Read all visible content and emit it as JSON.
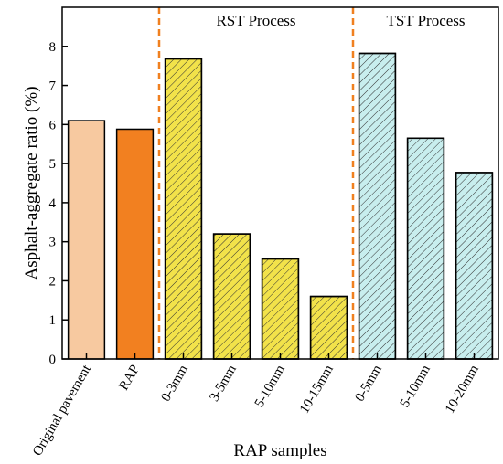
{
  "chart_data": {
    "type": "bar",
    "xlabel": "RAP samples",
    "ylabel": "Asphalt-aggregate ratio (%)",
    "ylim": [
      0,
      9
    ],
    "yticks": [
      0,
      1,
      2,
      3,
      4,
      5,
      6,
      7,
      8
    ],
    "grid": false,
    "categories": [
      "Original pavement",
      "RAP",
      "0-3mm",
      "3-5mm",
      "5-10mm",
      "10-15mm",
      "0-5mm",
      "5-10mm",
      "10-20mm"
    ],
    "values": [
      6.1,
      5.88,
      7.68,
      3.2,
      2.56,
      1.6,
      7.82,
      5.65,
      4.77
    ],
    "bar_colors": [
      "#F7C9A0",
      "#F28020",
      "#F2E24A",
      "#F2E24A",
      "#F2E24A",
      "#F2E24A",
      "#C8EEEE",
      "#C8EEEE",
      "#C8EEEE"
    ],
    "bar_hatched": [
      false,
      false,
      true,
      true,
      true,
      true,
      true,
      true,
      true
    ],
    "regions": [
      {
        "label": "RST Process",
        "start_index": 2,
        "end_index": 5
      },
      {
        "label": "TST Process",
        "start_index": 6,
        "end_index": 8
      }
    ],
    "divider_color": "#F08020"
  }
}
